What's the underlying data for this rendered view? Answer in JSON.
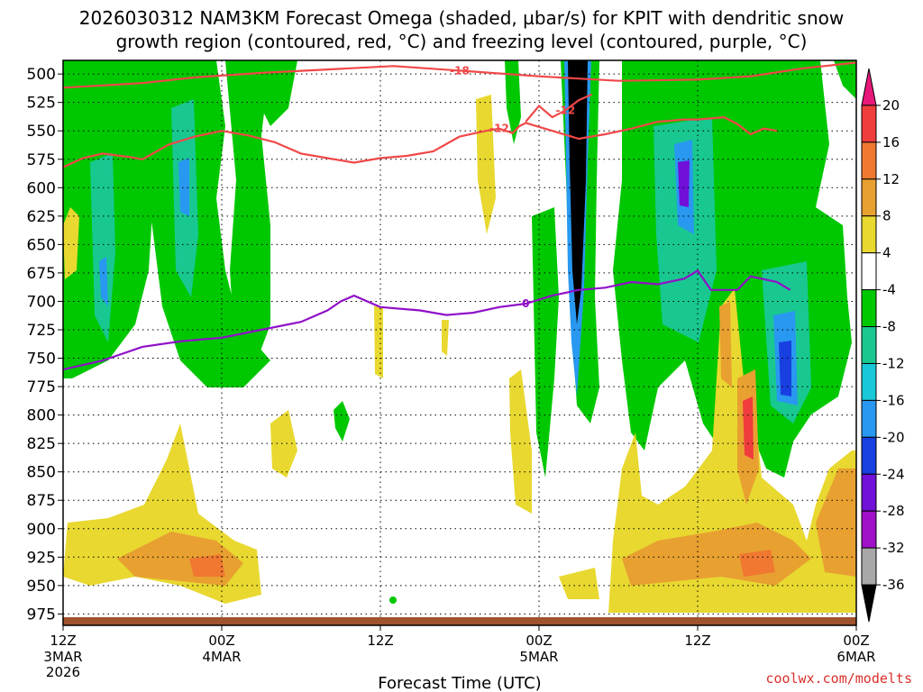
{
  "title_line1": "2026030312 NAM3KM Forecast Omega (shaded, µbar/s) for KPIT with dendritic snow",
  "title_line2": "growth region (contoured, red, °C) and freezing level (contoured, purple, °C)",
  "credit": "coolwx.com/modelts",
  "chart_data": {
    "type": "heatmap",
    "xlabel": "Forecast Time (UTC)",
    "y_ticks": [
      500,
      525,
      550,
      575,
      600,
      625,
      650,
      675,
      700,
      725,
      750,
      775,
      800,
      825,
      850,
      875,
      900,
      925,
      950,
      975
    ],
    "ylim": [
      488,
      985
    ],
    "y_inverted": true,
    "x_ticks": [
      {
        "label": "12Z",
        "date": "3MAR",
        "year": "2026"
      },
      {
        "label": "00Z",
        "date": "4MAR",
        "year": ""
      },
      {
        "label": "12Z",
        "date": "",
        "year": ""
      },
      {
        "label": "00Z",
        "date": "5MAR",
        "year": ""
      },
      {
        "label": "12Z",
        "date": "",
        "year": ""
      },
      {
        "label": "00Z",
        "date": "6MAR",
        "year": ""
      }
    ],
    "grid": true,
    "colorbar": {
      "levels": [
        20,
        16,
        12,
        8,
        4,
        -4,
        -8,
        -12,
        -16,
        -20,
        -24,
        -28,
        -32,
        -36
      ],
      "colors": [
        "#e8187a",
        "#f03c3c",
        "#f07830",
        "#e8a030",
        "#e8d830",
        "#ffffff",
        "#00c800",
        "#18c890",
        "#18c8d8",
        "#2898f0",
        "#1840e0",
        "#7010d8",
        "#a010c8",
        "#a8a8a8",
        "#000000"
      ]
    },
    "red_contour": [
      {
        "label": "-18",
        "points": [
          [
            0,
            512
          ],
          [
            3,
            510
          ],
          [
            6,
            508
          ],
          [
            10,
            503
          ],
          [
            15,
            499
          ],
          [
            20,
            496
          ],
          [
            25,
            493
          ],
          [
            30,
            497
          ],
          [
            36,
            502
          ],
          [
            42,
            506
          ],
          [
            48,
            505
          ],
          [
            52,
            502
          ],
          [
            56,
            495
          ],
          [
            60,
            490
          ]
        ]
      },
      {
        "label": "-12",
        "points": [
          [
            0,
            582
          ],
          [
            1.5,
            574
          ],
          [
            3,
            570
          ],
          [
            5,
            573
          ],
          [
            6,
            575
          ],
          [
            8,
            562
          ],
          [
            10,
            555
          ],
          [
            12,
            550
          ],
          [
            14,
            554
          ],
          [
            16,
            560
          ],
          [
            18,
            570
          ],
          [
            20,
            574
          ],
          [
            22,
            578
          ],
          [
            24,
            574
          ],
          [
            26,
            572
          ],
          [
            28,
            568
          ],
          [
            30,
            555
          ],
          [
            32,
            550
          ],
          [
            33,
            548
          ],
          [
            34,
            552
          ],
          [
            34.5,
            546
          ],
          [
            35,
            543
          ],
          [
            37,
            550
          ],
          [
            39,
            557
          ],
          [
            41,
            553
          ],
          [
            43,
            548
          ],
          [
            45,
            542
          ],
          [
            47,
            540
          ],
          [
            48,
            540
          ],
          [
            50,
            538
          ],
          [
            51,
            544
          ],
          [
            52,
            553
          ],
          [
            53,
            548
          ],
          [
            54,
            550
          ]
        ]
      },
      {
        "label": "-12",
        "points": [
          [
            35,
            542
          ],
          [
            36,
            528
          ],
          [
            37,
            538
          ],
          [
            38,
            532
          ],
          [
            39,
            523
          ],
          [
            40,
            518
          ]
        ]
      }
    ],
    "purple_contour": [
      {
        "label": "0",
        "points": [
          [
            0,
            760
          ],
          [
            3,
            752
          ],
          [
            6,
            740
          ],
          [
            9,
            735
          ],
          [
            12,
            732
          ],
          [
            15,
            725
          ],
          [
            18,
            718
          ],
          [
            20,
            708
          ],
          [
            21,
            700
          ],
          [
            22,
            695
          ],
          [
            24,
            705
          ],
          [
            27,
            708
          ],
          [
            29,
            712
          ],
          [
            31,
            710
          ],
          [
            33,
            705
          ],
          [
            35,
            702
          ],
          [
            37,
            695
          ],
          [
            39,
            690
          ],
          [
            41,
            688
          ],
          [
            43,
            683
          ],
          [
            45,
            685
          ],
          [
            47,
            680
          ],
          [
            48,
            673
          ],
          [
            49,
            690
          ],
          [
            51,
            690
          ],
          [
            52,
            678
          ],
          [
            54,
            683
          ],
          [
            55,
            690
          ]
        ]
      }
    ]
  }
}
